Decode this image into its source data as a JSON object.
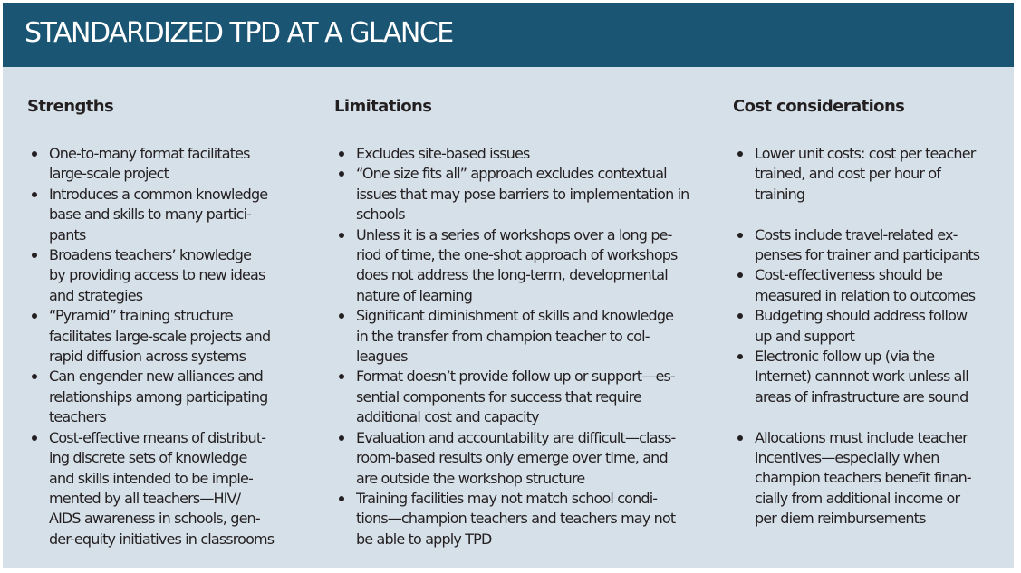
{
  "page": {
    "title": "STANDARDIZED TPD AT A GLANCE"
  },
  "colors": {
    "header_bg": "#1b5574",
    "panel_bg": "#d6e0e9",
    "text": "#231f20",
    "title_text": "#ffffff"
  },
  "columns": [
    {
      "heading": "Strengths",
      "items": [
        "One-to-many format facilitates\nlarge-scale project",
        "Introduces a common knowledge\nbase and skills to many partici-\npants",
        "Broadens teachers’ knowledge\nby providing access to new ideas\nand strategies",
        "“Pyramid” training structure\nfacilitates large-scale projects and\nrapid diffusion across systems",
        "Can engender new alliances and\nrelationships among participating\nteachers",
        "Cost-effective means of distribut-\ning discrete sets of knowledge\nand skills intended to be imple-\nmented by all teachers—HIV/\nAIDS awareness in schools, gen-\nder-equity initiatives in classrooms"
      ]
    },
    {
      "heading": "Limitations",
      "items": [
        "Excludes site-based issues",
        "“One size fits all” approach excludes contextual\nissues that may pose barriers to implementation in\nschools",
        "Unless it is a series of workshops over a long pe-\nriod of time, the one-shot approach of workshops\ndoes not address the long-term, developmental\nnature of learning",
        "Significant diminishment of skills and knowledge\nin the transfer from champion teacher to col-\nleagues",
        "Format doesn’t provide follow up or support—es-\nsential components for success that require\nadditional cost and capacity",
        "Evaluation and accountability are difficult—class-\nroom-based results only emerge over time, and\nare outside the workshop structure",
        "Training facilities may not match school condi-\ntions—champion teachers and teachers may not\nbe able to apply TPD"
      ]
    },
    {
      "heading": "Cost considerations",
      "items": [
        "Lower unit costs: cost per teacher\ntrained, and cost per hour of\ntraining",
        "Costs include travel-related ex-\npenses for trainer and participants",
        "Cost-effectiveness should be\nmeasured in relation to outcomes",
        "Budgeting should address follow\nup and support",
        "Electronic follow up (via the\nInternet) cannnot work unless all\nareas of infrastructure are sound",
        "Allocations must include teacher\nincentives—especially when\nchampion teachers benefit finan-\ncially from additional income or\nper diem reimbursements"
      ]
    }
  ]
}
